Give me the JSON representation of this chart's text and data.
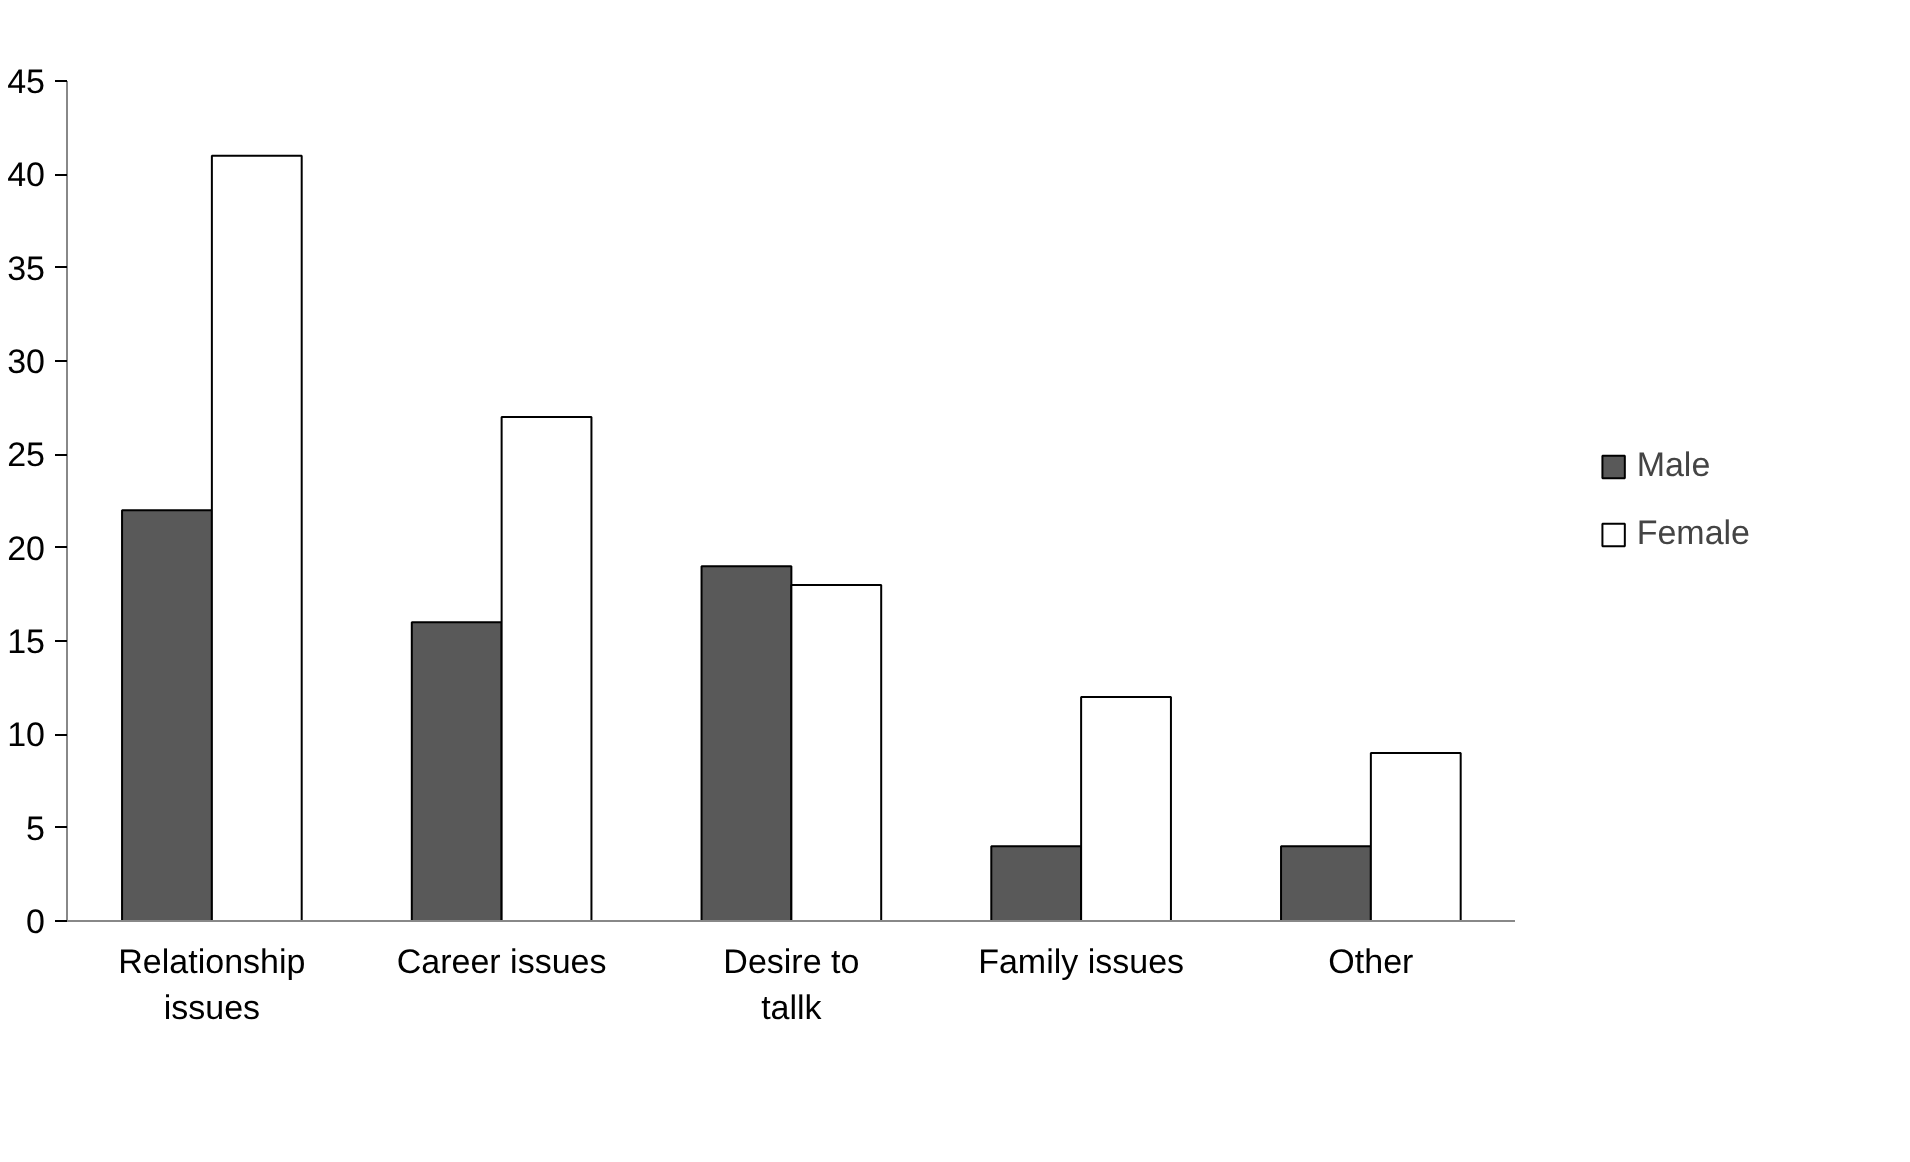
{
  "chart_data": {
    "type": "bar",
    "categories": [
      "Relationship issues",
      "Career issues",
      "Desire to tallk",
      "Family issues",
      "Other"
    ],
    "series": [
      {
        "name": "Male",
        "color": "#595959",
        "values": [
          22,
          16,
          19,
          4,
          4
        ]
      },
      {
        "name": "Female",
        "color": "#ffffff",
        "values": [
          41,
          27,
          18,
          12,
          9
        ]
      }
    ],
    "ylim": [
      0,
      45
    ],
    "yticks": [
      0,
      5,
      10,
      15,
      20,
      25,
      30,
      35,
      40,
      45
    ],
    "grid": false,
    "legend": "right"
  }
}
